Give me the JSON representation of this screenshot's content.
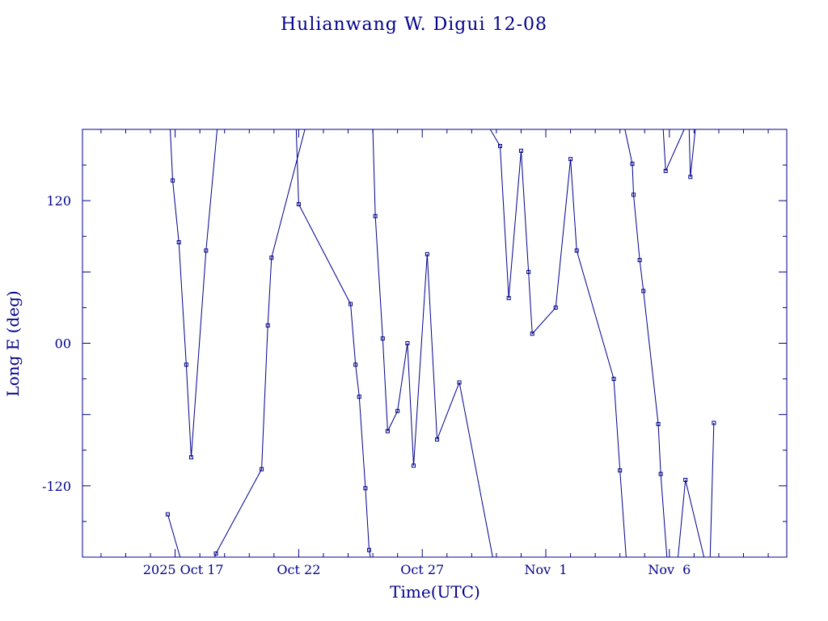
{
  "chart_data": {
    "type": "line",
    "title": "Hulianwang W. Digui 12-08",
    "xlabel": "Time(UTC)",
    "ylabel": "Long E (deg)",
    "xlim": [
      13.25,
      41.75
    ],
    "ylim": [
      -180,
      180
    ],
    "y_ticks": [
      120,
      0,
      -120
    ],
    "y_tick_labels": [
      "120",
      "00",
      "-120"
    ],
    "x_ticks": [
      {
        "value": 17,
        "label": "2025 Oct 17"
      },
      {
        "value": 22,
        "label": "Oct 22"
      },
      {
        "value": 27,
        "label": "Oct 27"
      },
      {
        "value": 32,
        "label": "Nov  1"
      },
      {
        "value": 37,
        "label": "Nov  6"
      }
    ],
    "x_unit": "day of October 2025 (UTC)",
    "wraparound": true,
    "grid": false,
    "color": "#00008b",
    "series": [
      {
        "points": [
          [
            16.7,
            -144
          ],
          [
            17.2,
            -180
          ],
          [
            17.0,
            180
          ],
          [
            16.8,
            180
          ],
          [
            16.8,
            180
          ],
          [
            16.9,
            137
          ],
          [
            17.15,
            85
          ],
          [
            17.45,
            -18
          ],
          [
            17.65,
            -96
          ],
          [
            18.25,
            78
          ],
          [
            18.7,
            180
          ],
          [
            18.6,
            180
          ],
          [
            18.6,
            -180
          ],
          [
            18.65,
            -177
          ],
          [
            20.5,
            -106
          ],
          [
            20.75,
            15
          ],
          [
            20.9,
            72
          ],
          [
            22.25,
            180
          ],
          [
            21.9,
            180
          ],
          [
            21.9,
            180
          ],
          [
            22.0,
            117
          ],
          [
            24.1,
            33
          ],
          [
            24.3,
            -18
          ],
          [
            24.45,
            -45
          ],
          [
            24.7,
            -122
          ],
          [
            24.85,
            -174
          ],
          [
            24.9,
            -180
          ],
          [
            24.9,
            180
          ],
          [
            25.0,
            180
          ],
          [
            25.1,
            107
          ],
          [
            25.4,
            4
          ],
          [
            25.6,
            -74
          ],
          [
            26.0,
            -57
          ],
          [
            26.4,
            0
          ],
          [
            26.65,
            -103
          ],
          [
            27.2,
            75
          ],
          [
            27.6,
            -81
          ],
          [
            28.5,
            -33
          ],
          [
            29.85,
            -180
          ],
          [
            29.75,
            180
          ],
          [
            30.15,
            166
          ],
          [
            30.5,
            38
          ],
          [
            31.0,
            162
          ],
          [
            31.3,
            60
          ],
          [
            31.45,
            8
          ],
          [
            32.4,
            30
          ],
          [
            33.0,
            155
          ],
          [
            33.25,
            78
          ],
          [
            34.75,
            -30
          ],
          [
            35.0,
            -107
          ],
          [
            35.25,
            -180
          ],
          [
            35.2,
            180
          ],
          [
            35.5,
            151
          ],
          [
            35.55,
            125
          ],
          [
            35.8,
            70
          ],
          [
            35.95,
            44
          ],
          [
            36.55,
            -68
          ],
          [
            36.65,
            -110
          ],
          [
            36.9,
            -180
          ],
          [
            37.15,
            180
          ],
          [
            36.65,
            180
          ],
          [
            36.75,
            180
          ],
          [
            36.85,
            145
          ],
          [
            37.6,
            180
          ],
          [
            37.8,
            180
          ],
          [
            37.85,
            140
          ],
          [
            38.05,
            180
          ],
          [
            37.35,
            -180
          ],
          [
            37.65,
            -115
          ],
          [
            38.4,
            -180
          ],
          [
            38.65,
            -180
          ],
          [
            38.8,
            -67
          ]
        ]
      }
    ]
  }
}
